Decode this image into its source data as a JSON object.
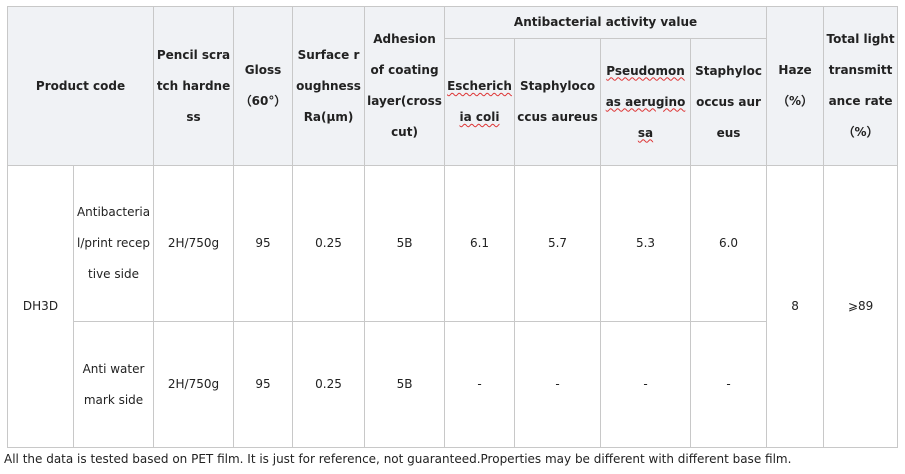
{
  "header": {
    "product_code": "Product code",
    "pencil": "Pencil scratch hardness",
    "gloss": "Gloss（60°）",
    "roughness": "Surface roughness Ra(μm)",
    "adhesion": "Adhesion of coating layer(crosscut)",
    "antibacterial": "Antibacterial activity value",
    "sub": [
      "Escherichia coli",
      "Staphylococcus aureus",
      "Pseudomonas aeruginosa",
      "Staphylococcus aureus"
    ],
    "haze": "Haze（%）",
    "transmittance": "Total light transmittance rate（%）"
  },
  "product": {
    "code": "DH3D",
    "haze": "8",
    "transmittance": "⩾89",
    "rows": [
      {
        "side": "Antibacterial/print receptive side",
        "pencil": "2H/750g",
        "gloss": "95",
        "roughness": "0.25",
        "adhesion": "5B",
        "values": [
          "6.1",
          "5.7",
          "5.3",
          "6.0"
        ]
      },
      {
        "side": "Anti water mark side",
        "pencil": "2H/750g",
        "gloss": "95",
        "roughness": "0.25",
        "adhesion": "5B",
        "values": [
          "-",
          "-",
          "-",
          "-"
        ]
      }
    ]
  },
  "footnote": "All the data is tested based on PET film. It is just for reference, not guaranteed.Properties may be different with different base film."
}
